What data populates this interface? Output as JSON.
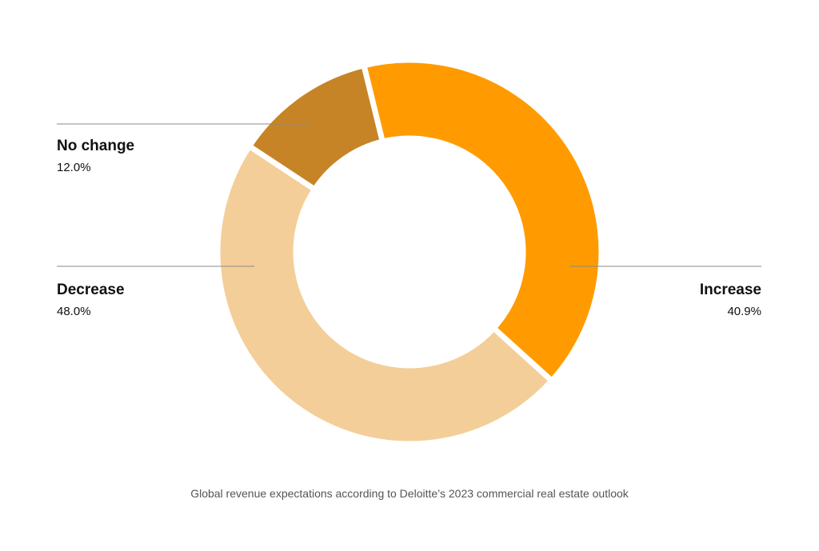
{
  "chart_data": {
    "type": "pie",
    "donut": true,
    "caption": "Global revenue expectations according to Deloitte’s 2023 commercial real estate outlook",
    "slices": [
      {
        "label": "Increase",
        "value": 40.9,
        "value_label": "40.9%",
        "color": "#FF9B00"
      },
      {
        "label": "Decrease",
        "value": 48.0,
        "value_label": "48.0%",
        "color": "#F4CE98"
      },
      {
        "label": "No change",
        "value": 12.0,
        "value_label": "12.0%",
        "color": "#C68426"
      }
    ]
  }
}
